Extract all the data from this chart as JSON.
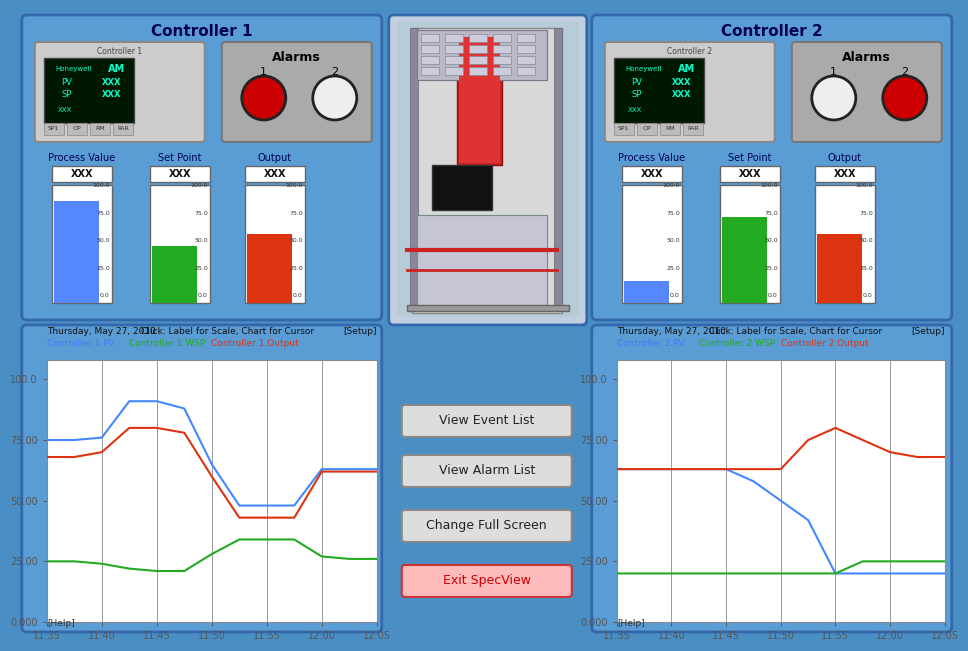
{
  "bg_color": "#4a8fc4",
  "panel_bg": "#5599cc",
  "chart_bg": "#ffffff",
  "controller1_title": "Controller 1",
  "controller2_title": "Controller 2",
  "alarms_title": "Alarms",
  "date_text": "Thursday, May 27, 2010",
  "click_text": "Click: Label for Scale, Chart for Cursor",
  "setup_text": "[Setup]",
  "help_text": "[Help]",
  "c1_legend": [
    "Controller 1.PV",
    "Controller 1.WSP",
    "Controller 1.Output"
  ],
  "c2_legend": [
    "Controller 2.PV",
    "Controller 2.WSP",
    "Controller 2.Output"
  ],
  "legend_colors": [
    "#4477ff",
    "#22aa22",
    "#dd3311"
  ],
  "time_labels": [
    "11:35",
    "11:40",
    "11:45",
    "11:50",
    "11:55",
    "12:00",
    "12:05"
  ],
  "y_labels": [
    "0.000",
    "25.00",
    "50.00",
    "75.00",
    "100.0"
  ],
  "buttons": [
    "View Event List",
    "View Alarm List",
    "Change Full Screen",
    "Exit SpecView"
  ],
  "display_text_color": "#00ffcc",
  "gray_panel": "#aaaaaa",
  "bar1_pv_val": 93,
  "bar1_sp_val": 52,
  "bar1_out_val": 63,
  "bar2_pv_val": 20,
  "bar2_sp_val": 78,
  "bar2_out_val": 63,
  "c1_pv": [
    75,
    75,
    76,
    91,
    91,
    88,
    65,
    48,
    48,
    48,
    63,
    63,
    63
  ],
  "c1_wsp": [
    25,
    25,
    24,
    22,
    21,
    21,
    28,
    34,
    34,
    34,
    27,
    26,
    26
  ],
  "c1_out": [
    68,
    68,
    70,
    80,
    80,
    78,
    60,
    43,
    43,
    43,
    62,
    62,
    62
  ],
  "c2_pv": [
    63,
    63,
    63,
    63,
    63,
    58,
    50,
    42,
    20,
    20,
    20,
    20,
    20
  ],
  "c2_wsp": [
    20,
    20,
    20,
    20,
    20,
    20,
    20,
    20,
    20,
    25,
    25,
    25,
    25
  ],
  "c2_out": [
    63,
    63,
    63,
    63,
    63,
    63,
    63,
    75,
    80,
    75,
    70,
    68,
    68
  ],
  "time_x": [
    0,
    1,
    2,
    3,
    4,
    5,
    6,
    7,
    8,
    9,
    10,
    11,
    12
  ]
}
